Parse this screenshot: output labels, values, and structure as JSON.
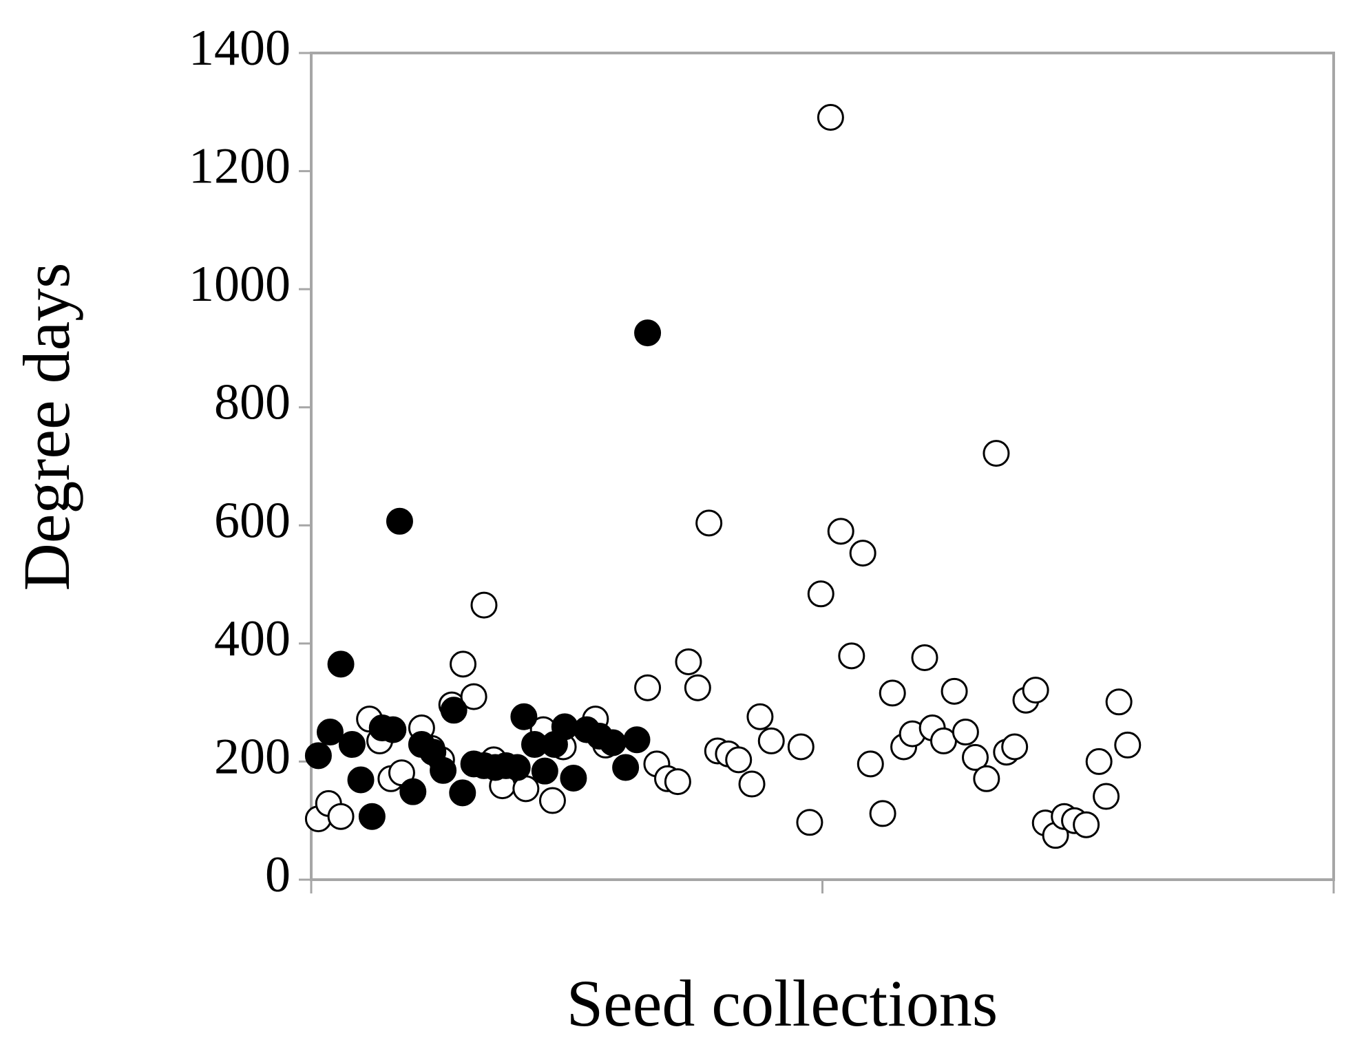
{
  "chart_data": {
    "type": "scatter",
    "x_label": "Seed collections",
    "y_label": "Degree days",
    "xlim": [
      0,
      200
    ],
    "xticks": [
      0,
      100,
      200
    ],
    "ylim": [
      0,
      1400
    ],
    "yticks": [
      0,
      200,
      400,
      600,
      800,
      1000,
      1200,
      1400
    ],
    "grid": false,
    "series": [
      {
        "color": "#000000",
        "filled": false,
        "x": [
          1.4,
          3.4,
          5.8,
          11.4,
          13.4,
          15.6,
          17.7,
          21.6,
          23.6,
          25.5,
          27.5,
          29.7,
          31.8,
          33.8,
          35.7,
          37.4,
          42.0,
          45.4,
          47.2,
          49.3,
          55.6,
          57.6,
          65.8,
          67.6,
          69.7,
          71.7,
          73.8,
          75.6,
          77.8,
          79.5,
          81.6,
          83.6,
          86.2,
          87.8,
          90.0,
          95.8,
          97.5,
          99.7,
          101.6,
          103.6,
          105.7,
          107.9,
          109.4,
          111.8,
          113.7,
          115.9,
          117.6,
          120.0,
          121.5,
          123.7,
          125.8,
          128.0,
          129.9,
          132.1,
          134.0,
          136.0,
          137.6,
          139.8,
          141.7,
          143.6,
          145.6,
          147.3,
          149.3,
          151.6,
          154.1,
          155.5,
          158.0,
          159.7
        ],
        "values": [
          103,
          129,
          107,
          272,
          235,
          171,
          181,
          257,
          222,
          203,
          296,
          365,
          310,
          465,
          203,
          159,
          154,
          254,
          134,
          225,
          272,
          228,
          325,
          196,
          171,
          166,
          369,
          325,
          604,
          218,
          213,
          203,
          162,
          276,
          235,
          225,
          97,
          484,
          1291,
          590,
          379,
          553,
          196,
          112,
          316,
          225,
          247,
          376,
          257,
          235,
          319,
          250,
          207,
          171,
          722,
          216,
          225,
          304,
          321,
          96,
          75,
          107,
          100,
          93,
          200,
          141,
          301,
          228
        ]
      },
      {
        "color": "#000000",
        "filled": true,
        "x": [
          1.4,
          3.7,
          5.8,
          8.0,
          9.7,
          11.9,
          13.9,
          16.0,
          17.3,
          19.9,
          21.6,
          23.8,
          25.8,
          27.9,
          29.6,
          31.8,
          33.8,
          36.0,
          38.1,
          40.3,
          41.6,
          43.7,
          45.7,
          47.6,
          49.6,
          51.3,
          53.9,
          56.4,
          59.0,
          61.5,
          63.7,
          65.8
        ],
        "values": [
          210,
          250,
          365,
          229,
          169,
          107,
          257,
          254,
          607,
          149,
          229,
          216,
          185,
          287,
          147,
          196,
          193,
          190,
          193,
          190,
          276,
          229,
          184,
          229,
          259,
          172,
          254,
          243,
          232,
          190,
          237,
          926
        ]
      }
    ]
  }
}
